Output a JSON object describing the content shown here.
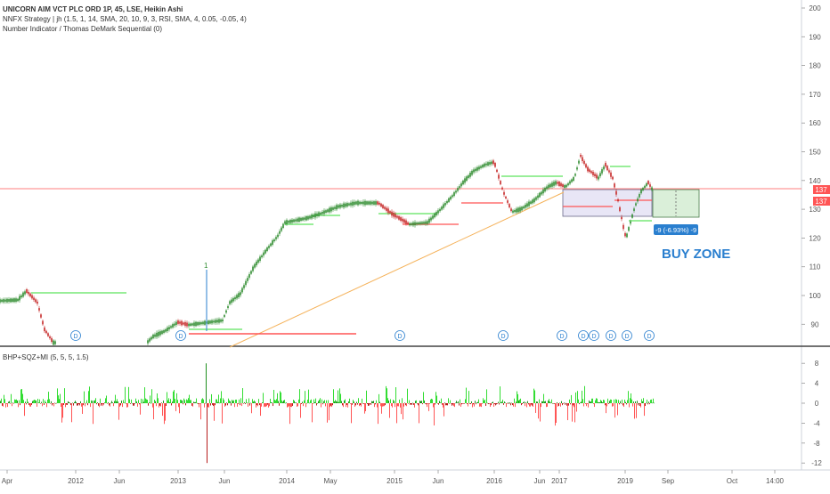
{
  "legend": {
    "symbol_line": "UNICORN AIM VCT PLC ORD 1P, 45, LSE, Heikin Ashi",
    "strategy_line": "NNFX Strategy | jh (1.5, 1, 14, SMA, 20, 10, 9, 3, RSI, SMA, 4, 0.05, -0.05, 4)",
    "demark_line": "Number Indicator / Thomas DeMark Sequential (0)",
    "oscillator_line": "BHP+SQZ+MI (5, 5, 5, 1.5)"
  },
  "annotations": {
    "buy_zone": "BUY ZONE",
    "measure": "-9 (-6.93%) -9",
    "spike_label": "1",
    "dividend_marker": "D",
    "price_badge_upper": "137",
    "price_badge_lower": "137"
  },
  "colors": {
    "up": "#26a69a",
    "bull_candle": "#2e8b2e",
    "bear_candle": "#c62828",
    "accent_blue": "#2a7fcf",
    "level_green": "#33dd33",
    "level_red": "#ff5555",
    "trendline": "#f5b25a"
  },
  "price_axis": {
    "ticks": [
      "200",
      "190",
      "180",
      "170",
      "160",
      "150",
      "140",
      "130",
      "120",
      "110",
      "100",
      "90"
    ]
  },
  "osc_axis": {
    "ticks": [
      "8",
      "4",
      "0",
      "-4",
      "-8",
      "-12"
    ]
  },
  "time_axis": {
    "labels": [
      "Apr",
      "2012",
      "Jun",
      "2013",
      "Jun",
      "2014",
      "May",
      "2015",
      "Jun",
      "2016",
      "Jun",
      "2017",
      "2019",
      "Sep",
      "Oct",
      "14:00"
    ]
  },
  "chart_data": {
    "type": "line",
    "title": "UNICORN AIM VCT PLC ORD 1P, 45, LSE, Heikin Ashi",
    "xlabel": "",
    "ylabel": "",
    "ylim": [
      85,
      202
    ],
    "grid": false,
    "x": [
      "Apr",
      "2012",
      "Jun",
      "2013",
      "Jun",
      "2014",
      "May",
      "2015",
      "Jun",
      "2016",
      "Jun",
      "2017",
      "2019"
    ],
    "series": [
      {
        "values": [
          99,
          85,
          85,
          90,
          92,
          123,
          133,
          127,
          147,
          129,
          143,
          145,
          137
        ]
      }
    ],
    "levels": [
      {
        "price": 101,
        "color": "green"
      },
      {
        "price": 88,
        "color": "green"
      },
      {
        "price": 87,
        "color": "red"
      },
      {
        "price": 137,
        "color": "red"
      },
      {
        "price": 145,
        "color": "green"
      },
      {
        "price": 124,
        "color": "red"
      },
      {
        "price": 129,
        "color": "green"
      }
    ],
    "measure": {
      "text": "-9 (-6.93%) -9"
    },
    "oscillator": {
      "name": "BHP+SQZ+MI (5, 5, 5, 1.5)",
      "ylim": [
        -13,
        9
      ],
      "spike_max": 8,
      "spike_min": -12
    }
  }
}
